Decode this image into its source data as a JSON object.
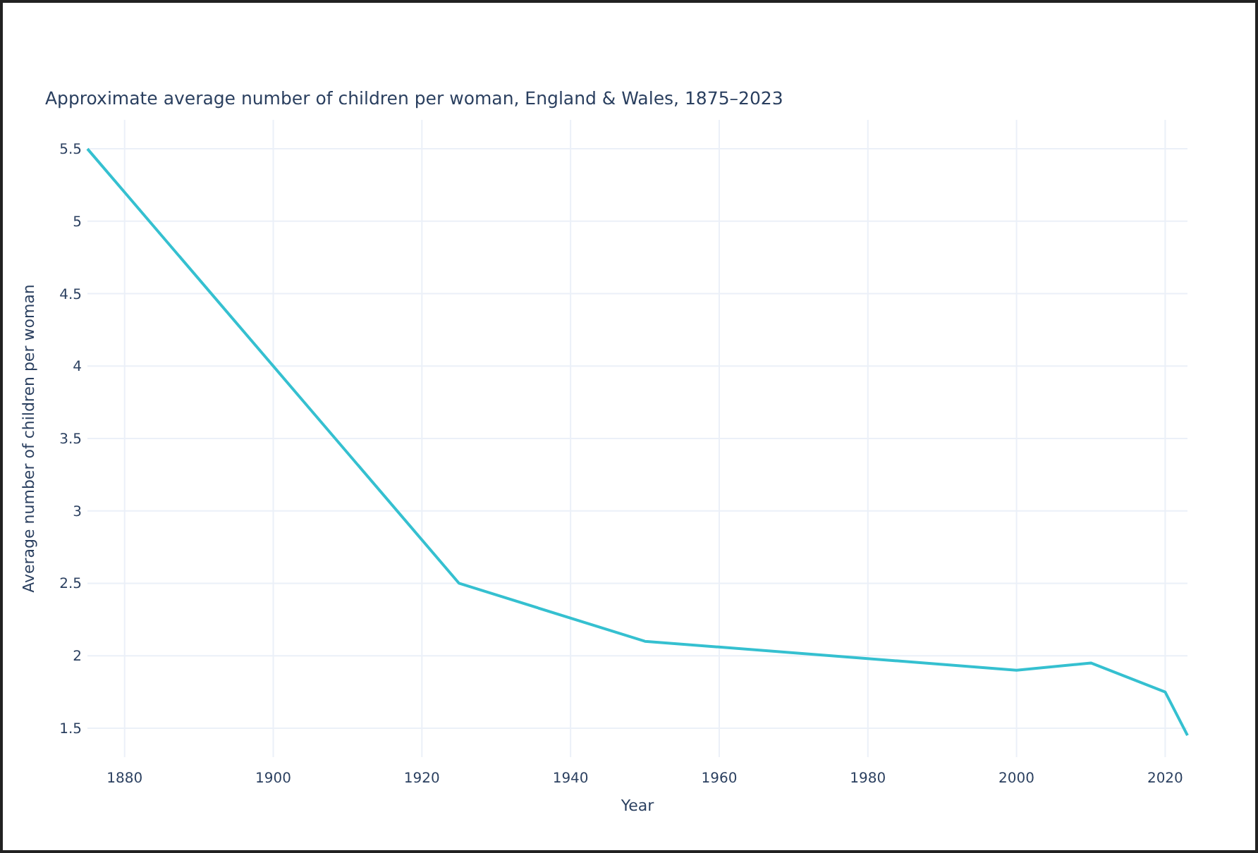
{
  "chart_data": {
    "type": "line",
    "title": "Approximate average number of children per woman, England & Wales, 1875–2023",
    "xlabel": "Year",
    "ylabel": "Average number of children per woman",
    "x": [
      1875,
      1925,
      1950,
      2000,
      2010,
      2020,
      2023
    ],
    "series": [
      {
        "color": "#35c0d0",
        "values": [
          5.5,
          2.5,
          2.1,
          1.9,
          1.95,
          1.75,
          1.45
        ]
      }
    ],
    "xlim": [
      1875,
      2023
    ],
    "ylim": [
      1.3,
      5.7
    ],
    "xticks": [
      1880,
      1900,
      1920,
      1940,
      1960,
      1980,
      2000,
      2020
    ],
    "yticks": [
      1.5,
      2,
      2.5,
      3,
      3.5,
      4,
      4.5,
      5,
      5.5
    ],
    "grid": true,
    "marker": "none",
    "line_style": "solid"
  }
}
